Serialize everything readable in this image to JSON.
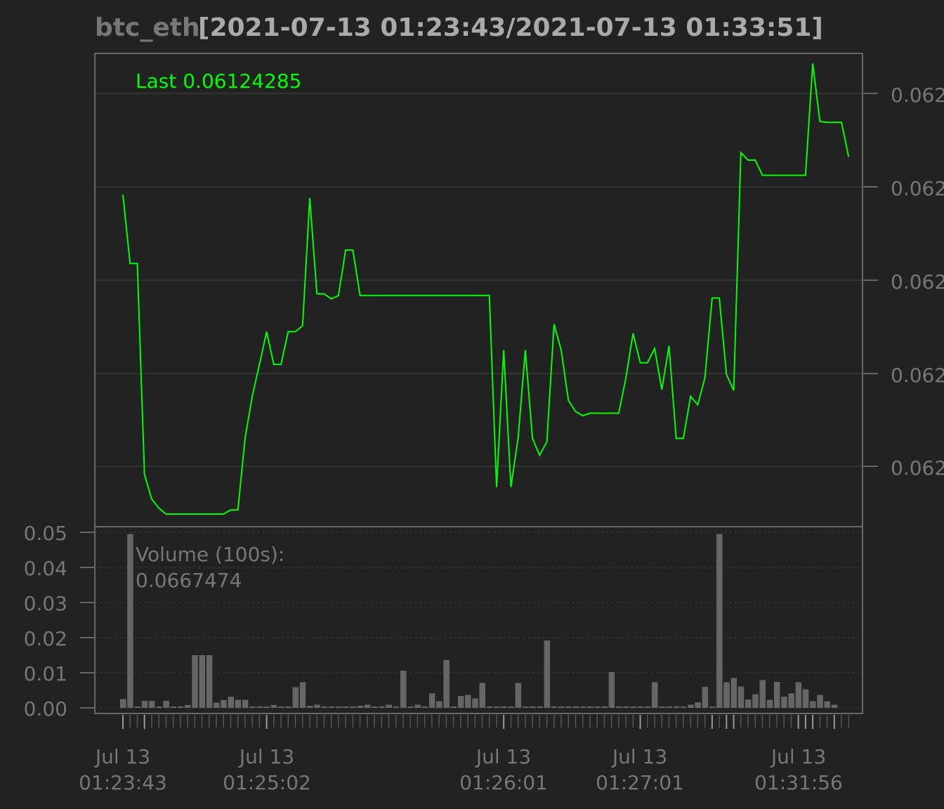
{
  "colors": {
    "background": "#222222",
    "price_line": "#00ff00",
    "volume_bar": "#666666",
    "frame": "#666666",
    "grid": "#333333",
    "text": "#777777",
    "title_range": "#aaaaaa"
  },
  "title": {
    "symbol": "btc_eth",
    "range": "[2021-07-13 01:23:43/2021-07-13 01:33:51]"
  },
  "price_panel": {
    "last_label": "Last 0.06124285",
    "right_ticks": [
      "0.062",
      "0.062",
      "0.062",
      "0.062",
      "0.062"
    ]
  },
  "volume_panel": {
    "label_line1": "Volume (100s):",
    "label_line2": "0.0667474",
    "y_ticks": [
      "0.05",
      "0.04",
      "0.03",
      "0.02",
      "0.01",
      "0.00"
    ]
  },
  "x_axis": {
    "labels": [
      {
        "date": "Jul 13",
        "time": "01:23:43"
      },
      {
        "date": "Jul 13",
        "time": "01:25:02"
      },
      {
        "date": "Jul 13",
        "time": "01:26:01"
      },
      {
        "date": "Jul 13",
        "time": "01:27:01"
      },
      {
        "date": "Jul 13",
        "time": "01:31:56"
      }
    ]
  },
  "chart_data": {
    "type": "line",
    "title": "btc_eth[2021-07-13 01:23:43/2021-07-13 01:33:51]",
    "observations": 100,
    "series": [
      {
        "name": "Last",
        "panel": "price",
        "values": [
          0.3,
          -0.52,
          -0.52,
          -3.03,
          -3.32,
          -3.43,
          -3.5,
          -3.5,
          -3.5,
          -3.5,
          -3.5,
          -3.5,
          -3.5,
          -3.5,
          -3.5,
          -3.45,
          -3.45,
          -2.6,
          -2.1,
          -1.72,
          -1.33,
          -1.72,
          -1.72,
          -1.33,
          -1.33,
          -1.26,
          0.26,
          -0.88,
          -0.88,
          -0.94,
          -0.9,
          -0.36,
          -0.36,
          -0.9,
          -0.9,
          -0.9,
          -0.9,
          -0.9,
          -0.9,
          -0.9,
          -0.9,
          -0.9,
          -0.9,
          -0.9,
          -0.9,
          -0.9,
          -0.9,
          -0.9,
          -0.9,
          -0.9,
          -0.9,
          -0.9,
          -3.18,
          -1.55,
          -3.18,
          -2.6,
          -1.55,
          -2.6,
          -2.8,
          -2.64,
          -1.24,
          -1.55,
          -2.15,
          -2.28,
          -2.33,
          -2.3,
          -2.3,
          -2.3,
          -2.3,
          -2.3,
          -1.88,
          -1.35,
          -1.7,
          -1.7,
          -1.53,
          -2.02,
          -1.5,
          -2.6,
          -2.6,
          -2.1,
          -2.2,
          -1.88,
          -0.93,
          -0.93,
          -1.84,
          -2.03,
          0.8,
          0.71,
          0.71,
          0.53,
          0.53,
          0.53,
          0.53,
          0.53,
          0.53,
          0.53,
          1.86,
          1.17,
          1.16,
          1.16,
          1.16,
          0.75
        ],
        "y_display_range": [
          -3.65,
          1.98
        ]
      },
      {
        "name": "Volume",
        "panel": "volume",
        "values": [
          0.0025,
          0.0495,
          0.0004,
          0.002,
          0.002,
          0.0004,
          0.002,
          0.0004,
          0.0004,
          0.0008,
          0.015,
          0.015,
          0.015,
          0.0015,
          0.0022,
          0.0032,
          0.0023,
          0.0023,
          0.0004,
          0.0004,
          0.0004,
          0.0008,
          0.0004,
          0.0004,
          0.0059,
          0.0073,
          0.0006,
          0.0009,
          0.0004,
          0.0004,
          0.0004,
          0.0004,
          0.0004,
          0.0006,
          0.0009,
          0.0004,
          0.0004,
          0.0009,
          0.0004,
          0.0106,
          0.0004,
          0.0009,
          0.0004,
          0.0041,
          0.0019,
          0.0136,
          0.0004,
          0.0034,
          0.0037,
          0.0027,
          0.0071,
          0.0004,
          0.0004,
          0.0004,
          0.0004,
          0.0071,
          0.0004,
          0.0004,
          0.0004,
          0.0192,
          0.0004,
          0.0004,
          0.0004,
          0.0004,
          0.0004,
          0.0004,
          0.0004,
          0.0004,
          0.0102,
          0.0004,
          0.0004,
          0.0004,
          0.0004,
          0.0004,
          0.0073,
          0.0004,
          0.0004,
          0.0004,
          0.0004,
          0.0009,
          0.0016,
          0.006,
          0.0004,
          0.0495,
          0.0073,
          0.0085,
          0.0061,
          0.0024,
          0.0039,
          0.0079,
          0.0023,
          0.0074,
          0.0032,
          0.0041,
          0.0073,
          0.0053,
          0.0019,
          0.0037,
          0.0019,
          0.0009
        ],
        "ylim": [
          0,
          0.05
        ]
      }
    ],
    "x_tick_labels": [
      "Jul 13 01:23:43",
      "Jul 13 01:25:02",
      "Jul 13 01:26:01",
      "Jul 13 01:27:01",
      "Jul 13 01:31:56"
    ],
    "y_tick_labels_price": [
      "0.062",
      "0.062",
      "0.062",
      "0.062",
      "0.062"
    ],
    "y_tick_labels_volume": [
      "0.05",
      "0.04",
      "0.03",
      "0.02",
      "0.01",
      "0.00"
    ],
    "grid": true
  }
}
